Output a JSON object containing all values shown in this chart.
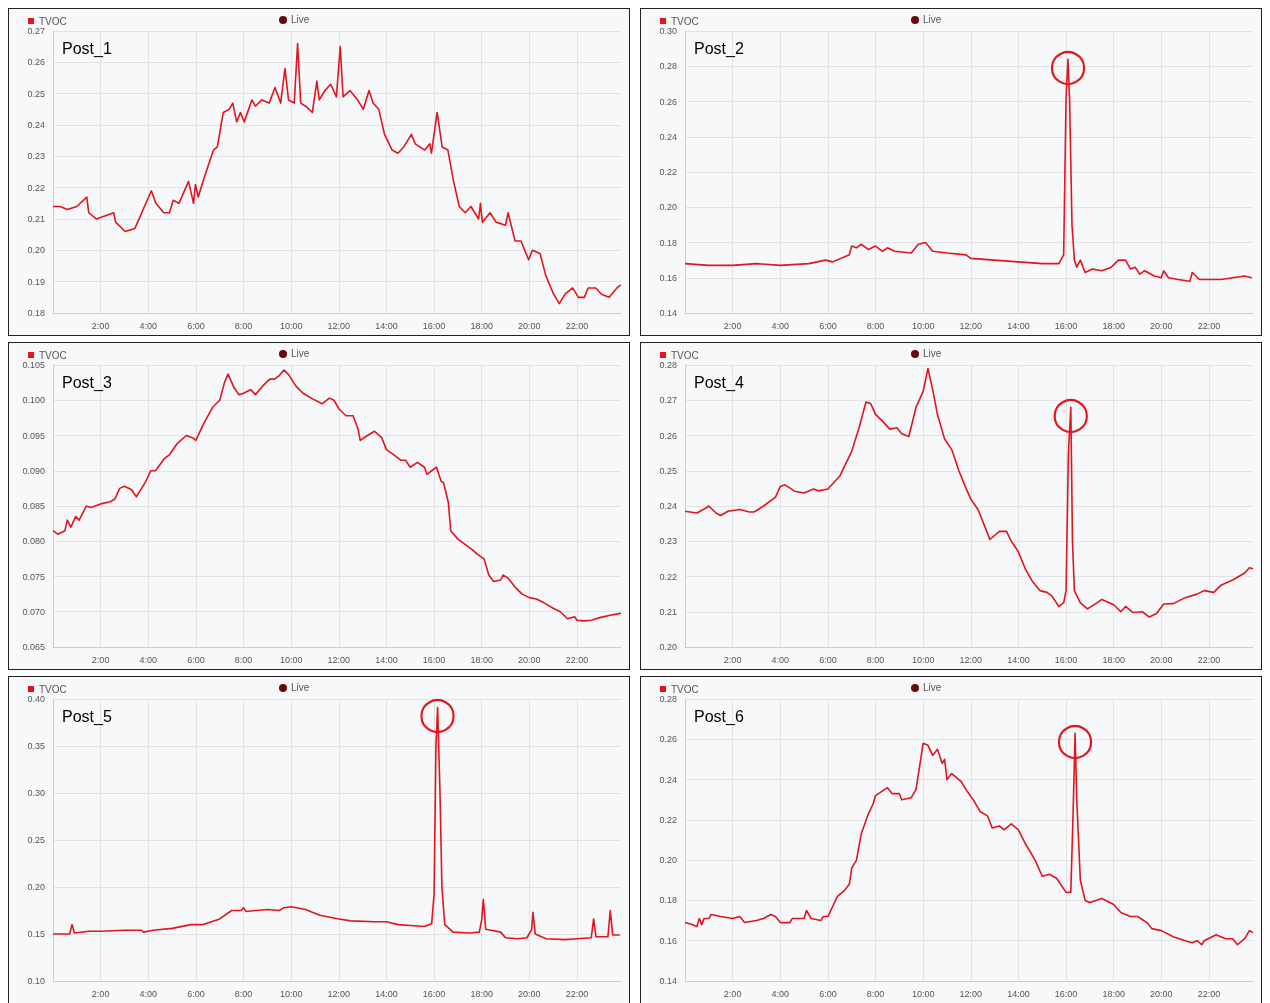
{
  "chart_data": [
    {
      "type": "line",
      "title": "Post_1",
      "annotations": [
        "Live"
      ],
      "legend": "top left",
      "grid": true,
      "marker": "none",
      "xlim": [
        0,
        23.85
      ],
      "ylim": [
        0.18,
        0.27
      ],
      "xticks": [
        {
          "value": 2,
          "label": "2:00"
        },
        {
          "value": 4,
          "label": "4:00"
        },
        {
          "value": 6,
          "label": "6:00"
        },
        {
          "value": 8,
          "label": "8:00"
        },
        {
          "value": 10,
          "label": "10:00"
        },
        {
          "value": 12,
          "label": "12:00"
        },
        {
          "value": 14,
          "label": "14:00"
        },
        {
          "value": 16,
          "label": "16:00"
        },
        {
          "value": 18,
          "label": "18:00"
        },
        {
          "value": 20,
          "label": "20:00"
        },
        {
          "value": 22,
          "label": "22:00"
        }
      ],
      "yticks": [
        0.18,
        0.19,
        {
          "value": 0.2,
          "label": "0.20"
        },
        0.21,
        0.22,
        0.23,
        0.24,
        0.25,
        0.26,
        0.27
      ],
      "x": [
        0,
        0.3,
        0.6,
        1.0,
        1.42,
        1.5,
        1.82,
        2.55,
        2.63,
        3.03,
        3.44,
        4.13,
        4.32,
        4.65,
        4.89,
        5.05,
        5.29,
        5.69,
        5.9,
        5.98,
        6.1,
        6.34,
        6.74,
        6.9,
        7.15,
        7.39,
        7.55,
        7.71,
        7.87,
        8.03,
        8.35,
        8.5,
        8.76,
        9.08,
        9.32,
        9.56,
        9.74,
        9.89,
        10.13,
        10.27,
        10.4,
        10.61,
        10.89,
        11.08,
        11.18,
        11.42,
        11.66,
        11.9,
        12.06,
        12.18,
        12.47,
        12.79,
        13.03,
        13.27,
        13.44,
        13.68,
        13.92,
        14.24,
        14.48,
        14.73,
        15.05,
        15.21,
        15.61,
        15.82,
        15.89,
        16.13,
        16.34,
        16.58,
        16.82,
        17.06,
        17.31,
        17.55,
        17.87,
        17.95,
        18.03,
        18.35,
        18.6,
        19.0,
        19.11,
        19.4,
        19.65,
        19.97,
        20.13,
        20.45,
        20.69,
        21.02,
        21.26,
        21.5,
        21.82,
        22.06,
        22.31,
        22.47,
        22.79,
        23.03,
        23.35,
        23.68,
        23.84
      ],
      "series": [
        {
          "name": "TVOC",
          "color": "#e3141c",
          "values": [
            0.214,
            0.214,
            0.213,
            0.214,
            0.217,
            0.212,
            0.21,
            0.212,
            0.209,
            0.206,
            0.207,
            0.219,
            0.215,
            0.212,
            0.212,
            0.216,
            0.215,
            0.222,
            0.215,
            0.221,
            0.217,
            0.223,
            0.232,
            0.233,
            0.244,
            0.245,
            0.247,
            0.241,
            0.244,
            0.241,
            0.248,
            0.246,
            0.248,
            0.247,
            0.252,
            0.247,
            0.258,
            0.248,
            0.247,
            0.266,
            0.247,
            0.246,
            0.244,
            0.254,
            0.248,
            0.251,
            0.253,
            0.249,
            0.265,
            0.249,
            0.251,
            0.248,
            0.245,
            0.251,
            0.247,
            0.245,
            0.237,
            0.232,
            0.231,
            0.233,
            0.237,
            0.234,
            0.232,
            0.234,
            0.231,
            0.244,
            0.233,
            0.232,
            0.222,
            0.214,
            0.212,
            0.214,
            0.21,
            0.215,
            0.209,
            0.212,
            0.209,
            0.208,
            0.212,
            0.203,
            0.203,
            0.197,
            0.2,
            0.199,
            0.192,
            0.186,
            0.183,
            0.186,
            0.188,
            0.185,
            0.185,
            0.188,
            0.188,
            0.186,
            0.185,
            0.188,
            0.189
          ]
        }
      ]
    },
    {
      "type": "line",
      "title": "Post_2",
      "annotations": [
        "Live",
        {
          "text": "◯",
          "x": 16.08,
          "y": 0.284
        }
      ],
      "legend": "top left",
      "grid": true,
      "marker": "none",
      "xlim": [
        0,
        23.85
      ],
      "ylim": [
        0.14,
        0.3
      ],
      "xticks": [
        {
          "value": 2,
          "label": "2:00"
        },
        {
          "value": 4,
          "label": "4:00"
        },
        {
          "value": 6,
          "label": "6:00"
        },
        {
          "value": 8,
          "label": "8:00"
        },
        {
          "value": 10,
          "label": "10:00"
        },
        {
          "value": 12,
          "label": "12:00"
        },
        {
          "value": 14,
          "label": "14:00"
        },
        {
          "value": 16,
          "label": "16:00"
        },
        {
          "value": 18,
          "label": "18:00"
        },
        {
          "value": 20,
          "label": "20:00"
        },
        {
          "value": 22,
          "label": "22:00"
        }
      ],
      "yticks": [
        0.14,
        0.16,
        0.18,
        {
          "value": 0.2,
          "label": "0.20"
        },
        0.22,
        0.24,
        0.26,
        0.28,
        {
          "value": 0.3,
          "label": "0.30"
        }
      ],
      "x": [
        0,
        1,
        2,
        3,
        4,
        5.2,
        5.9,
        6.2,
        6.9,
        7.0,
        7.2,
        7.4,
        7.7,
        8.0,
        8.3,
        8.5,
        8.8,
        9.5,
        9.8,
        10.1,
        10.4,
        11,
        11.8,
        12,
        13,
        14,
        15,
        15.7,
        15.9,
        16.0,
        16.08,
        16.15,
        16.25,
        16.35,
        16.45,
        16.6,
        16.8,
        17.1,
        17.5,
        17.9,
        18.2,
        18.5,
        18.7,
        18.9,
        19.1,
        19.3,
        19.7,
        20.0,
        20.1,
        20.3,
        20.7,
        21.2,
        21.3,
        21.6,
        22,
        22.5,
        23,
        23.5,
        23.8
      ],
      "series": [
        {
          "name": "TVOC",
          "color": "#e3141c",
          "values": [
            0.168,
            0.167,
            0.167,
            0.168,
            0.167,
            0.168,
            0.17,
            0.169,
            0.173,
            0.178,
            0.177,
            0.179,
            0.176,
            0.178,
            0.175,
            0.177,
            0.175,
            0.174,
            0.179,
            0.18,
            0.175,
            0.174,
            0.173,
            0.171,
            0.17,
            0.169,
            0.168,
            0.168,
            0.173,
            0.262,
            0.284,
            0.26,
            0.19,
            0.17,
            0.166,
            0.17,
            0.163,
            0.165,
            0.164,
            0.166,
            0.17,
            0.17,
            0.165,
            0.166,
            0.162,
            0.164,
            0.161,
            0.16,
            0.164,
            0.16,
            0.159,
            0.158,
            0.163,
            0.159,
            0.159,
            0.159,
            0.16,
            0.161,
            0.16
          ]
        }
      ]
    },
    {
      "type": "line",
      "title": "Post_3",
      "annotations": [
        "Live"
      ],
      "legend": "top left",
      "grid": true,
      "marker": "none",
      "xlim": [
        0,
        23.85
      ],
      "ylim": [
        0.065,
        0.105
      ],
      "xticks": [
        {
          "value": 2,
          "label": "2:00"
        },
        {
          "value": 4,
          "label": "4:00"
        },
        {
          "value": 6,
          "label": "6:00"
        },
        {
          "value": 8,
          "label": "8:00"
        },
        {
          "value": 10,
          "label": "10:00"
        },
        {
          "value": 12,
          "label": "12:00"
        },
        {
          "value": 14,
          "label": "14:00"
        },
        {
          "value": 16,
          "label": "16:00"
        },
        {
          "value": 18,
          "label": "18:00"
        },
        {
          "value": 20,
          "label": "20:00"
        },
        {
          "value": 22,
          "label": "22:00"
        }
      ],
      "yticks": [
        0.065,
        {
          "value": 0.07,
          "label": "0.070"
        },
        0.075,
        {
          "value": 0.08,
          "label": "0.080"
        },
        0.085,
        {
          "value": 0.09,
          "label": "0.090"
        },
        0.095,
        {
          "value": 0.1,
          "label": "0.100"
        },
        0.105
      ],
      "x": [
        0,
        0.2,
        0.5,
        0.6,
        0.75,
        0.95,
        1.1,
        1.4,
        1.6,
        2.0,
        2.4,
        2.6,
        2.8,
        3.0,
        3.3,
        3.5,
        3.9,
        4.1,
        4.3,
        4.7,
        4.9,
        5.2,
        5.6,
        5.9,
        6.0,
        6.3,
        6.7,
        7.0,
        7.2,
        7.35,
        7.6,
        7.8,
        8.0,
        8.3,
        8.5,
        8.8,
        9.1,
        9.3,
        9.5,
        9.7,
        9.9,
        10.2,
        10.5,
        10.9,
        11.3,
        11.6,
        11.8,
        12.0,
        12.3,
        12.6,
        12.8,
        12.9,
        13.2,
        13.5,
        13.8,
        14.0,
        14.3,
        14.6,
        14.8,
        15.0,
        15.3,
        15.6,
        15.7,
        15.9,
        16.1,
        16.3,
        16.4,
        16.6,
        16.7,
        17.0,
        17.4,
        17.6,
        17.8,
        18.1,
        18.3,
        18.5,
        18.8,
        18.9,
        19.1,
        19.4,
        19.7,
        20.0,
        20.3,
        20.6,
        21.0,
        21.3,
        21.6,
        21.9,
        22.0,
        22.3,
        22.6,
        23.0,
        23.4,
        23.7,
        23.85
      ],
      "series": [
        {
          "name": "TVOC",
          "color": "#e3141c",
          "values": [
            0.0815,
            0.081,
            0.0815,
            0.083,
            0.082,
            0.0835,
            0.083,
            0.085,
            0.0848,
            0.0853,
            0.0856,
            0.086,
            0.0875,
            0.0878,
            0.0873,
            0.0863,
            0.0885,
            0.09,
            0.09,
            0.0918,
            0.0923,
            0.0938,
            0.095,
            0.0946,
            0.0943,
            0.0965,
            0.099,
            0.1,
            0.1025,
            0.1037,
            0.1018,
            0.1008,
            0.101,
            0.1015,
            0.1008,
            0.102,
            0.103,
            0.103,
            0.1035,
            0.1043,
            0.1036,
            0.102,
            0.101,
            0.1002,
            0.0995,
            0.1003,
            0.1,
            0.0988,
            0.0978,
            0.0978,
            0.096,
            0.0943,
            0.095,
            0.0956,
            0.0947,
            0.093,
            0.0923,
            0.0915,
            0.0915,
            0.0905,
            0.0912,
            0.0905,
            0.0895,
            0.09,
            0.0905,
            0.0885,
            0.0883,
            0.0855,
            0.0815,
            0.0803,
            0.0793,
            0.0788,
            0.0782,
            0.0775,
            0.0752,
            0.0743,
            0.0745,
            0.0752,
            0.0748,
            0.0735,
            0.0725,
            0.072,
            0.0718,
            0.0713,
            0.0705,
            0.07,
            0.069,
            0.0693,
            0.0688,
            0.0687,
            0.0688,
            0.0692,
            0.0695,
            0.0697,
            0.0698
          ]
        }
      ]
    },
    {
      "type": "line",
      "title": "Post_4",
      "annotations": [
        "Live",
        {
          "text": "◯",
          "x": 16.2,
          "y": 0.268
        }
      ],
      "legend": "top left",
      "grid": true,
      "marker": "none",
      "xlim": [
        0,
        23.85
      ],
      "ylim": [
        0.2,
        0.28
      ],
      "xticks": [
        {
          "value": 2,
          "label": "2:00"
        },
        {
          "value": 4,
          "label": "4:00"
        },
        {
          "value": 6,
          "label": "6:00"
        },
        {
          "value": 8,
          "label": "8:00"
        },
        {
          "value": 10,
          "label": "10:00"
        },
        {
          "value": 12,
          "label": "12:00"
        },
        {
          "value": 14,
          "label": "14:00"
        },
        {
          "value": 16,
          "label": "16:00"
        },
        {
          "value": 18,
          "label": "18:00"
        },
        {
          "value": 20,
          "label": "20:00"
        },
        {
          "value": 22,
          "label": "22:00"
        }
      ],
      "yticks": [
        {
          "value": 0.2,
          "label": "0.20"
        },
        0.21,
        0.22,
        0.23,
        0.24,
        0.25,
        0.26,
        0.27,
        0.28
      ],
      "x": [
        0,
        0.5,
        0.9,
        1.0,
        1.3,
        1.5,
        1.8,
        2.3,
        2.7,
        2.9,
        3.3,
        3.8,
        4.0,
        4.2,
        4.6,
        5.0,
        5.4,
        5.6,
        6.0,
        6.5,
        7.0,
        7.3,
        7.6,
        7.8,
        8.0,
        8.3,
        8.6,
        8.9,
        9.1,
        9.4,
        9.7,
        10.0,
        10.2,
        10.4,
        10.6,
        10.9,
        11.2,
        11.5,
        11.8,
        12.0,
        12.3,
        12.6,
        12.8,
        13.2,
        13.5,
        13.7,
        14.0,
        14.3,
        14.6,
        14.9,
        15.2,
        15.4,
        15.7,
        15.9,
        16.0,
        16.1,
        16.2,
        16.27,
        16.35,
        16.6,
        16.9,
        17.3,
        17.5,
        18.0,
        18.3,
        18.5,
        18.8,
        19.2,
        19.5,
        19.8,
        20.1,
        20.5,
        21.0,
        21.5,
        21.8,
        22.2,
        22.5,
        23.0,
        23.5,
        23.7,
        23.85
      ],
      "series": [
        {
          "name": "TVOC",
          "color": "#e3141c",
          "values": [
            0.2385,
            0.238,
            0.2395,
            0.24,
            0.238,
            0.2373,
            0.2385,
            0.239,
            0.2383,
            0.2383,
            0.24,
            0.2425,
            0.2455,
            0.246,
            0.2442,
            0.2437,
            0.2448,
            0.2443,
            0.2448,
            0.2485,
            0.2555,
            0.262,
            0.2695,
            0.269,
            0.266,
            0.264,
            0.2618,
            0.2622,
            0.2605,
            0.2597,
            0.268,
            0.2725,
            0.279,
            0.273,
            0.266,
            0.259,
            0.256,
            0.25,
            0.245,
            0.242,
            0.239,
            0.234,
            0.2305,
            0.2328,
            0.2328,
            0.23,
            0.227,
            0.222,
            0.2185,
            0.216,
            0.2155,
            0.2145,
            0.2115,
            0.2125,
            0.216,
            0.255,
            0.268,
            0.23,
            0.216,
            0.2125,
            0.2108,
            0.2125,
            0.2135,
            0.212,
            0.21,
            0.2115,
            0.2098,
            0.21,
            0.2085,
            0.2095,
            0.2122,
            0.2123,
            0.214,
            0.215,
            0.216,
            0.2155,
            0.2175,
            0.219,
            0.221,
            0.2225,
            0.2222
          ]
        }
      ]
    },
    {
      "type": "line",
      "title": "Post_5",
      "annotations": [
        "Live",
        {
          "text": "◯",
          "x": 16.15,
          "y": 0.391
        }
      ],
      "legend": "top left",
      "grid": true,
      "marker": "none",
      "xlim": [
        0,
        23.85
      ],
      "ylim": [
        0.1,
        0.4
      ],
      "xticks": [
        {
          "value": 2,
          "label": "2:00"
        },
        {
          "value": 4,
          "label": "4:00"
        },
        {
          "value": 6,
          "label": "6:00"
        },
        {
          "value": 8,
          "label": "8:00"
        },
        {
          "value": 10,
          "label": "10:00"
        },
        {
          "value": 12,
          "label": "12:00"
        },
        {
          "value": 14,
          "label": "14:00"
        },
        {
          "value": 16,
          "label": "16:00"
        },
        {
          "value": 18,
          "label": "18:00"
        },
        {
          "value": 20,
          "label": "20:00"
        },
        {
          "value": 22,
          "label": "22:00"
        }
      ],
      "yticks": [
        {
          "value": 0.1,
          "label": "0.10"
        },
        0.15,
        {
          "value": 0.2,
          "label": "0.20"
        },
        0.25,
        {
          "value": 0.3,
          "label": "0.30"
        },
        0.35,
        {
          "value": 0.4,
          "label": "0.40"
        }
      ],
      "x": [
        0,
        0.7,
        0.8,
        0.9,
        1.5,
        2.0,
        3.0,
        3.7,
        3.8,
        4.2,
        5.0,
        5.8,
        6.3,
        7.0,
        7.5,
        7.9,
        8.0,
        8.1,
        9.0,
        9.5,
        9.7,
        10.0,
        10.6,
        11.2,
        12.0,
        12.5,
        13.5,
        14.0,
        14.5,
        15.0,
        15.6,
        15.9,
        16.0,
        16.08,
        16.15,
        16.25,
        16.33,
        16.45,
        16.8,
        17.5,
        17.9,
        18.0,
        18.07,
        18.17,
        18.4,
        18.8,
        19.0,
        19.5,
        19.9,
        20.1,
        20.15,
        20.25,
        20.7,
        21.5,
        22.0,
        22.6,
        22.7,
        22.8,
        23.3,
        23.4,
        23.5,
        23.8
      ],
      "series": [
        {
          "name": "TVOC",
          "color": "#e3141c",
          "values": [
            0.15,
            0.15,
            0.16,
            0.151,
            0.153,
            0.153,
            0.154,
            0.154,
            0.152,
            0.154,
            0.156,
            0.16,
            0.16,
            0.166,
            0.175,
            0.175,
            0.178,
            0.174,
            0.176,
            0.175,
            0.178,
            0.179,
            0.176,
            0.17,
            0.166,
            0.164,
            0.163,
            0.163,
            0.16,
            0.159,
            0.158,
            0.161,
            0.192,
            0.35,
            0.391,
            0.3,
            0.2,
            0.16,
            0.152,
            0.151,
            0.152,
            0.165,
            0.187,
            0.155,
            0.154,
            0.152,
            0.146,
            0.145,
            0.146,
            0.155,
            0.173,
            0.15,
            0.145,
            0.144,
            0.145,
            0.146,
            0.166,
            0.147,
            0.147,
            0.175,
            0.149,
            0.149
          ]
        }
      ]
    },
    {
      "type": "line",
      "title": "Post_6",
      "annotations": [
        "Live",
        {
          "text": "◯",
          "x": 16.38,
          "y": 0.263
        }
      ],
      "legend": "top left",
      "grid": true,
      "marker": "none",
      "xlim": [
        0,
        23.85
      ],
      "ylim": [
        0.14,
        0.28
      ],
      "xticks": [
        {
          "value": 2,
          "label": "2:00"
        },
        {
          "value": 4,
          "label": "4:00"
        },
        {
          "value": 6,
          "label": "6:00"
        },
        {
          "value": 8,
          "label": "8:00"
        },
        {
          "value": 10,
          "label": "10:00"
        },
        {
          "value": 12,
          "label": "12:00"
        },
        {
          "value": 14,
          "label": "14:00"
        },
        {
          "value": 16,
          "label": "16:00"
        },
        {
          "value": 18,
          "label": "18:00"
        },
        {
          "value": 20,
          "label": "20:00"
        },
        {
          "value": 22,
          "label": "22:00"
        }
      ],
      "yticks": [
        0.14,
        0.16,
        0.18,
        {
          "value": 0.2,
          "label": "0.20"
        },
        0.22,
        0.24,
        0.26,
        0.28
      ],
      "x": [
        0,
        0.3,
        0.5,
        0.6,
        0.7,
        0.8,
        1.0,
        1.1,
        1.5,
        2.0,
        2.3,
        2.5,
        3.0,
        3.3,
        3.6,
        3.8,
        4.0,
        4.4,
        4.5,
        5.0,
        5.1,
        5.3,
        5.7,
        5.8,
        6.0,
        6.2,
        6.4,
        6.7,
        6.9,
        7.0,
        7.2,
        7.4,
        7.7,
        7.9,
        8.0,
        8.5,
        8.7,
        9.0,
        9.1,
        9.5,
        9.7,
        10.0,
        10.2,
        10.4,
        10.6,
        10.8,
        10.9,
        11.0,
        11.2,
        11.6,
        11.8,
        12.1,
        12.4,
        12.7,
        12.9,
        13.2,
        13.4,
        13.7,
        14.0,
        14.3,
        14.7,
        15.0,
        15.3,
        15.6,
        16.0,
        16.2,
        16.3,
        16.38,
        16.45,
        16.6,
        16.8,
        17.0,
        17.5,
        18.0,
        18.3,
        18.7,
        19.0,
        19.4,
        19.6,
        20.0,
        20.5,
        21.0,
        21.3,
        21.5,
        21.7,
        21.8,
        22.3,
        22.7,
        23.0,
        23.2,
        23.5,
        23.7,
        23.85
      ],
      "series": [
        {
          "name": "TVOC",
          "color": "#e3141c",
          "values": [
            0.169,
            0.168,
            0.167,
            0.171,
            0.168,
            0.171,
            0.171,
            0.173,
            0.172,
            0.171,
            0.172,
            0.169,
            0.17,
            0.171,
            0.173,
            0.172,
            0.169,
            0.169,
            0.171,
            0.171,
            0.175,
            0.171,
            0.17,
            0.172,
            0.172,
            0.177,
            0.182,
            0.185,
            0.188,
            0.196,
            0.2,
            0.213,
            0.223,
            0.228,
            0.232,
            0.236,
            0.233,
            0.233,
            0.23,
            0.231,
            0.235,
            0.258,
            0.257,
            0.252,
            0.255,
            0.248,
            0.25,
            0.24,
            0.243,
            0.239,
            0.235,
            0.23,
            0.224,
            0.222,
            0.216,
            0.217,
            0.215,
            0.218,
            0.215,
            0.208,
            0.2,
            0.192,
            0.193,
            0.191,
            0.184,
            0.184,
            0.225,
            0.263,
            0.23,
            0.19,
            0.18,
            0.179,
            0.181,
            0.178,
            0.174,
            0.172,
            0.172,
            0.169,
            0.166,
            0.165,
            0.162,
            0.16,
            0.159,
            0.16,
            0.158,
            0.16,
            0.163,
            0.161,
            0.161,
            0.158,
            0.161,
            0.165,
            0.164
          ]
        }
      ]
    }
  ]
}
